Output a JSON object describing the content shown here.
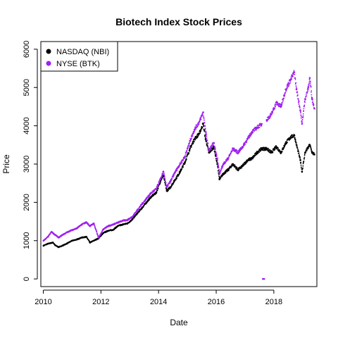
{
  "chart_data": {
    "type": "scatter",
    "title": "Biotech Index Stock Prices",
    "xlabel": "Date",
    "ylabel": "Price",
    "xlim": [
      "2009-12-01",
      "2019-06-30"
    ],
    "ylim": [
      -200,
      6200
    ],
    "x_ticks": [
      "2010",
      "2012",
      "2014",
      "2016",
      "2018"
    ],
    "y_ticks": [
      "0",
      "1000",
      "2000",
      "3000",
      "4000",
      "5000",
      "6000"
    ],
    "grid": false,
    "legend_position": "top-left",
    "series": [
      {
        "name": "NASDAQ (NBI)",
        "color": "#000000",
        "points": [
          [
            "2010-01-04",
            870
          ],
          [
            "2010-03-01",
            920
          ],
          [
            "2010-05-03",
            950
          ],
          [
            "2010-06-01",
            880
          ],
          [
            "2010-07-15",
            830
          ],
          [
            "2010-09-01",
            870
          ],
          [
            "2010-11-01",
            930
          ],
          [
            "2011-01-03",
            1000
          ],
          [
            "2011-03-01",
            1030
          ],
          [
            "2011-05-02",
            1080
          ],
          [
            "2011-07-01",
            1100
          ],
          [
            "2011-08-15",
            950
          ],
          [
            "2011-10-03",
            1000
          ],
          [
            "2011-12-01",
            1060
          ],
          [
            "2012-02-01",
            1200
          ],
          [
            "2012-04-02",
            1260
          ],
          [
            "2012-06-01",
            1280
          ],
          [
            "2012-08-01",
            1380
          ],
          [
            "2012-10-01",
            1420
          ],
          [
            "2012-12-03",
            1450
          ],
          [
            "2013-02-01",
            1550
          ],
          [
            "2013-04-01",
            1700
          ],
          [
            "2013-06-03",
            1850
          ],
          [
            "2013-08-01",
            2000
          ],
          [
            "2013-10-01",
            2150
          ],
          [
            "2013-12-02",
            2250
          ],
          [
            "2014-02-03",
            2600
          ],
          [
            "2014-03-03",
            2700
          ],
          [
            "2014-04-15",
            2300
          ],
          [
            "2014-06-02",
            2400
          ],
          [
            "2014-08-01",
            2600
          ],
          [
            "2014-10-01",
            2800
          ],
          [
            "2014-12-01",
            3050
          ],
          [
            "2015-02-02",
            3400
          ],
          [
            "2015-04-01",
            3650
          ],
          [
            "2015-06-01",
            3800
          ],
          [
            "2015-07-20",
            4050
          ],
          [
            "2015-08-20",
            3650
          ],
          [
            "2015-10-01",
            3300
          ],
          [
            "2015-12-01",
            3450
          ],
          [
            "2016-01-15",
            3000
          ],
          [
            "2016-02-12",
            2600
          ],
          [
            "2016-04-01",
            2750
          ],
          [
            "2016-06-01",
            2850
          ],
          [
            "2016-08-01",
            3000
          ],
          [
            "2016-10-03",
            2850
          ],
          [
            "2016-12-01",
            2950
          ],
          [
            "2017-02-01",
            3100
          ],
          [
            "2017-04-03",
            3150
          ],
          [
            "2017-06-01",
            3300
          ],
          [
            "2017-08-01",
            3400
          ],
          [
            "2017-10-02",
            3400
          ],
          [
            "2017-12-01",
            3300
          ],
          [
            "2018-02-01",
            3450
          ],
          [
            "2018-04-02",
            3300
          ],
          [
            "2018-06-01",
            3550
          ],
          [
            "2018-08-01",
            3700
          ],
          [
            "2018-09-17",
            3750
          ],
          [
            "2018-10-15",
            3500
          ],
          [
            "2018-12-03",
            3100
          ],
          [
            "2018-12-24",
            2800
          ],
          [
            "2019-02-01",
            3300
          ],
          [
            "2019-04-01",
            3500
          ],
          [
            "2019-05-01",
            3300
          ],
          [
            "2019-05-30",
            3250
          ]
        ]
      },
      {
        "name": "NYSE (BTK)",
        "color": "#a020f0",
        "points": [
          [
            "2010-01-04",
            1000
          ],
          [
            "2010-03-01",
            1100
          ],
          [
            "2010-04-15",
            1230
          ],
          [
            "2010-06-01",
            1150
          ],
          [
            "2010-07-15",
            1080
          ],
          [
            "2010-09-01",
            1150
          ],
          [
            "2010-11-01",
            1220
          ],
          [
            "2011-01-03",
            1280
          ],
          [
            "2011-03-01",
            1320
          ],
          [
            "2011-05-02",
            1420
          ],
          [
            "2011-07-01",
            1480
          ],
          [
            "2011-08-15",
            1380
          ],
          [
            "2011-10-03",
            1450
          ],
          [
            "2011-12-01",
            1080
          ],
          [
            "2012-02-01",
            1300
          ],
          [
            "2012-04-02",
            1380
          ],
          [
            "2012-06-01",
            1420
          ],
          [
            "2012-08-01",
            1470
          ],
          [
            "2012-10-01",
            1520
          ],
          [
            "2012-12-03",
            1540
          ],
          [
            "2013-02-01",
            1620
          ],
          [
            "2013-04-01",
            1780
          ],
          [
            "2013-06-03",
            1950
          ],
          [
            "2013-08-01",
            2100
          ],
          [
            "2013-10-01",
            2250
          ],
          [
            "2013-12-02",
            2350
          ],
          [
            "2014-02-03",
            2650
          ],
          [
            "2014-03-03",
            2800
          ],
          [
            "2014-04-15",
            2400
          ],
          [
            "2014-06-02",
            2550
          ],
          [
            "2014-08-01",
            2800
          ],
          [
            "2014-10-01",
            3000
          ],
          [
            "2014-12-01",
            3200
          ],
          [
            "2015-02-02",
            3600
          ],
          [
            "2015-04-01",
            3900
          ],
          [
            "2015-06-01",
            4100
          ],
          [
            "2015-07-20",
            4350
          ],
          [
            "2015-08-20",
            3850
          ],
          [
            "2015-10-01",
            3350
          ],
          [
            "2015-12-01",
            3550
          ],
          [
            "2016-01-15",
            3150
          ],
          [
            "2016-02-12",
            2750
          ],
          [
            "2016-04-01",
            3000
          ],
          [
            "2016-06-01",
            3150
          ],
          [
            "2016-08-01",
            3400
          ],
          [
            "2016-10-03",
            3300
          ],
          [
            "2016-12-01",
            3450
          ],
          [
            "2017-02-01",
            3650
          ],
          [
            "2017-04-03",
            3850
          ],
          [
            "2017-06-01",
            3950
          ],
          [
            "2017-08-01",
            4050
          ],
          [
            "2017-08-15",
            0
          ],
          [
            "2017-09-01",
            0
          ],
          [
            "2017-10-02",
            4150
          ],
          [
            "2017-12-01",
            4300
          ],
          [
            "2018-02-01",
            4600
          ],
          [
            "2018-04-02",
            4500
          ],
          [
            "2018-06-01",
            4950
          ],
          [
            "2018-08-01",
            5200
          ],
          [
            "2018-09-17",
            5400
          ],
          [
            "2018-10-15",
            4950
          ],
          [
            "2018-12-03",
            4400
          ],
          [
            "2018-12-24",
            4050
          ],
          [
            "2019-02-01",
            4700
          ],
          [
            "2019-03-15",
            5000
          ],
          [
            "2019-04-01",
            5250
          ],
          [
            "2019-05-01",
            4700
          ],
          [
            "2019-05-30",
            4450
          ]
        ]
      }
    ]
  }
}
